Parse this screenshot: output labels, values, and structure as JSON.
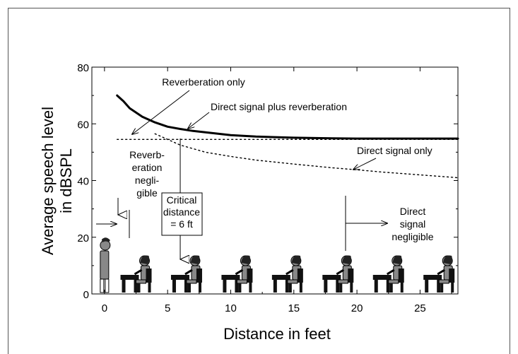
{
  "chart_data": {
    "type": "line",
    "ylabel_line1": "Average speech level",
    "ylabel_line2": "in dBSPL",
    "xlabel": "Distance in feet",
    "xlim": [
      -1,
      28
    ],
    "ylim": [
      0,
      80
    ],
    "x_ticks": [
      0,
      5,
      10,
      15,
      20,
      25
    ],
    "y_ticks": [
      0,
      20,
      40,
      60,
      80
    ],
    "grid": false,
    "series": [
      {
        "name": "Direct signal plus reverberation",
        "style": "solid-thick",
        "points": [
          [
            1,
            70
          ],
          [
            1.5,
            68
          ],
          [
            2,
            65.5
          ],
          [
            2.5,
            64
          ],
          [
            3,
            62.5
          ],
          [
            4,
            60.5
          ],
          [
            5,
            59
          ],
          [
            6,
            58.2
          ],
          [
            7,
            57.5
          ],
          [
            8,
            57
          ],
          [
            10,
            56
          ],
          [
            12,
            55.5
          ],
          [
            15,
            55.1
          ],
          [
            18,
            54.9
          ],
          [
            20,
            54.8
          ],
          [
            25,
            54.8
          ],
          [
            28,
            54.8
          ]
        ]
      },
      {
        "name": "Reverberation only",
        "style": "dotted",
        "points": [
          [
            1,
            54.5
          ],
          [
            28,
            54.5
          ]
        ]
      },
      {
        "name": "Direct signal only",
        "style": "dotted",
        "points": [
          [
            4,
            56.5
          ],
          [
            5,
            54.5
          ],
          [
            6,
            52.5
          ],
          [
            8,
            50
          ],
          [
            10,
            48.5
          ],
          [
            12,
            47.2
          ],
          [
            15,
            45.8
          ],
          [
            18,
            44.5
          ],
          [
            20,
            43.8
          ],
          [
            22,
            43
          ],
          [
            25,
            42
          ],
          [
            28,
            41
          ]
        ]
      }
    ],
    "annotations": {
      "reverberation_only": "Reverberation only",
      "direct_plus_reverb": "Direct signal plus reverberation",
      "direct_only": "Direct signal only",
      "reverb_negligible": [
        "Reverb-",
        "eration",
        "negli-",
        "gible"
      ],
      "critical_distance": [
        "Critical",
        "distance",
        "= 6 ft"
      ],
      "direct_negligible": [
        "Direct",
        "signal",
        "negligible"
      ]
    },
    "illustration": {
      "speaker_position_ft": 0,
      "listener_positions_ft": [
        2.5,
        6.5,
        10.5,
        14.5,
        18.5,
        22.5,
        26.5
      ]
    }
  },
  "colors": {
    "line": "#000000",
    "figure_fill": "#888888",
    "figure_dark": "#222222",
    "frame": "#555555"
  }
}
